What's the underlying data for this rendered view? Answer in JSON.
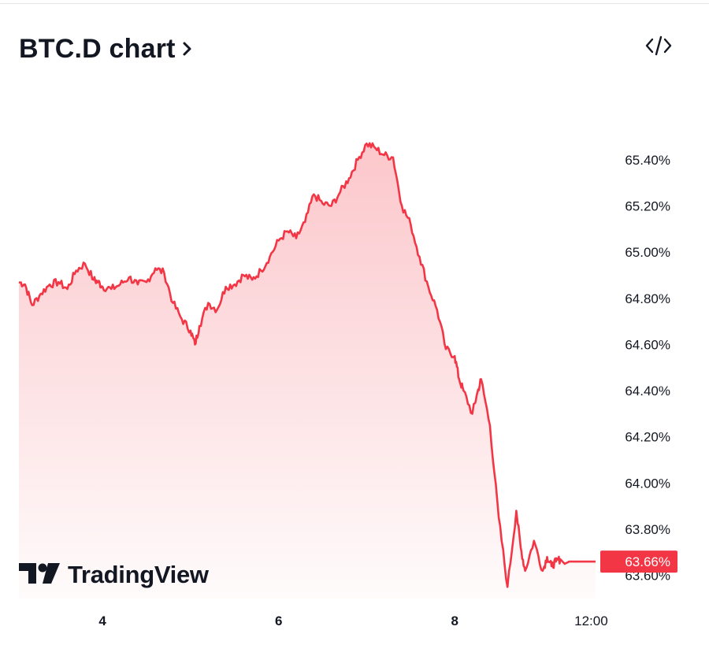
{
  "header": {
    "title": "BTC.D chart",
    "title_chevron_icon": "chevron-right-icon",
    "embed_icon": "code-embed-icon"
  },
  "branding": {
    "logo_icon": "tradingview-logo-icon",
    "logo_text": "TradingView"
  },
  "colors": {
    "line": "#f23645",
    "fill_top": "#f23645",
    "price_tag_bg": "#f23645",
    "text": "#131722"
  },
  "chart_data": {
    "type": "area",
    "title": "BTC.D chart",
    "xlabel": "",
    "ylabel": "",
    "x_ticks": [
      "4",
      "6",
      "8",
      "12:00"
    ],
    "y_ticks": [
      "65.40%",
      "65.20%",
      "65.00%",
      "64.80%",
      "64.60%",
      "64.40%",
      "64.20%",
      "64.00%",
      "63.80%",
      "63.60%"
    ],
    "ylim": [
      63.5,
      65.58
    ],
    "xlim": [
      3.05,
      9.6
    ],
    "grid": false,
    "legend": "none",
    "last_value_label": "63.66%",
    "series": [
      {
        "x": [
          3.05,
          3.12,
          3.2,
          3.3,
          3.4,
          3.5,
          3.6,
          3.7,
          3.8,
          3.9,
          3.95,
          4.0,
          4.1,
          4.2,
          4.3,
          4.4,
          4.5,
          4.6,
          4.7,
          4.8,
          4.9,
          5.0,
          5.05,
          5.1,
          5.2,
          5.3,
          5.4,
          5.5,
          5.6,
          5.7,
          5.8,
          5.9,
          6.0,
          6.1,
          6.2,
          6.3,
          6.4,
          6.5,
          6.6,
          6.7,
          6.8,
          6.9,
          7.0,
          7.1,
          7.2,
          7.3,
          7.4,
          7.5,
          7.6,
          7.7,
          7.8,
          7.9,
          8.0,
          8.05,
          8.1,
          8.2,
          8.25,
          8.3,
          8.4,
          8.5,
          8.6,
          8.7,
          8.75,
          8.8,
          8.9,
          9.0,
          9.05,
          9.1,
          9.15,
          9.2,
          9.25,
          9.3,
          9.35,
          9.4,
          9.45,
          9.5,
          9.55,
          9.6
        ],
        "y": [
          64.87,
          64.86,
          64.77,
          64.82,
          64.86,
          64.87,
          64.84,
          64.92,
          64.95,
          64.88,
          64.87,
          64.85,
          64.84,
          64.86,
          64.89,
          64.86,
          64.87,
          64.93,
          64.91,
          64.78,
          64.71,
          64.66,
          64.6,
          64.68,
          64.78,
          64.75,
          64.85,
          64.86,
          64.9,
          64.88,
          64.92,
          64.98,
          65.05,
          65.09,
          65.06,
          65.13,
          65.25,
          65.21,
          65.2,
          65.26,
          65.32,
          65.4,
          65.47,
          65.45,
          65.42,
          65.41,
          65.2,
          65.12,
          64.98,
          64.85,
          64.75,
          64.58,
          64.55,
          64.45,
          64.4,
          64.3,
          64.38,
          64.45,
          64.25,
          63.85,
          63.55,
          63.88,
          63.72,
          63.62,
          63.75,
          63.62,
          63.68,
          63.64,
          63.66,
          63.67,
          63.65,
          63.66,
          63.66,
          63.66,
          63.66,
          63.66,
          63.66,
          63.66
        ]
      }
    ]
  }
}
